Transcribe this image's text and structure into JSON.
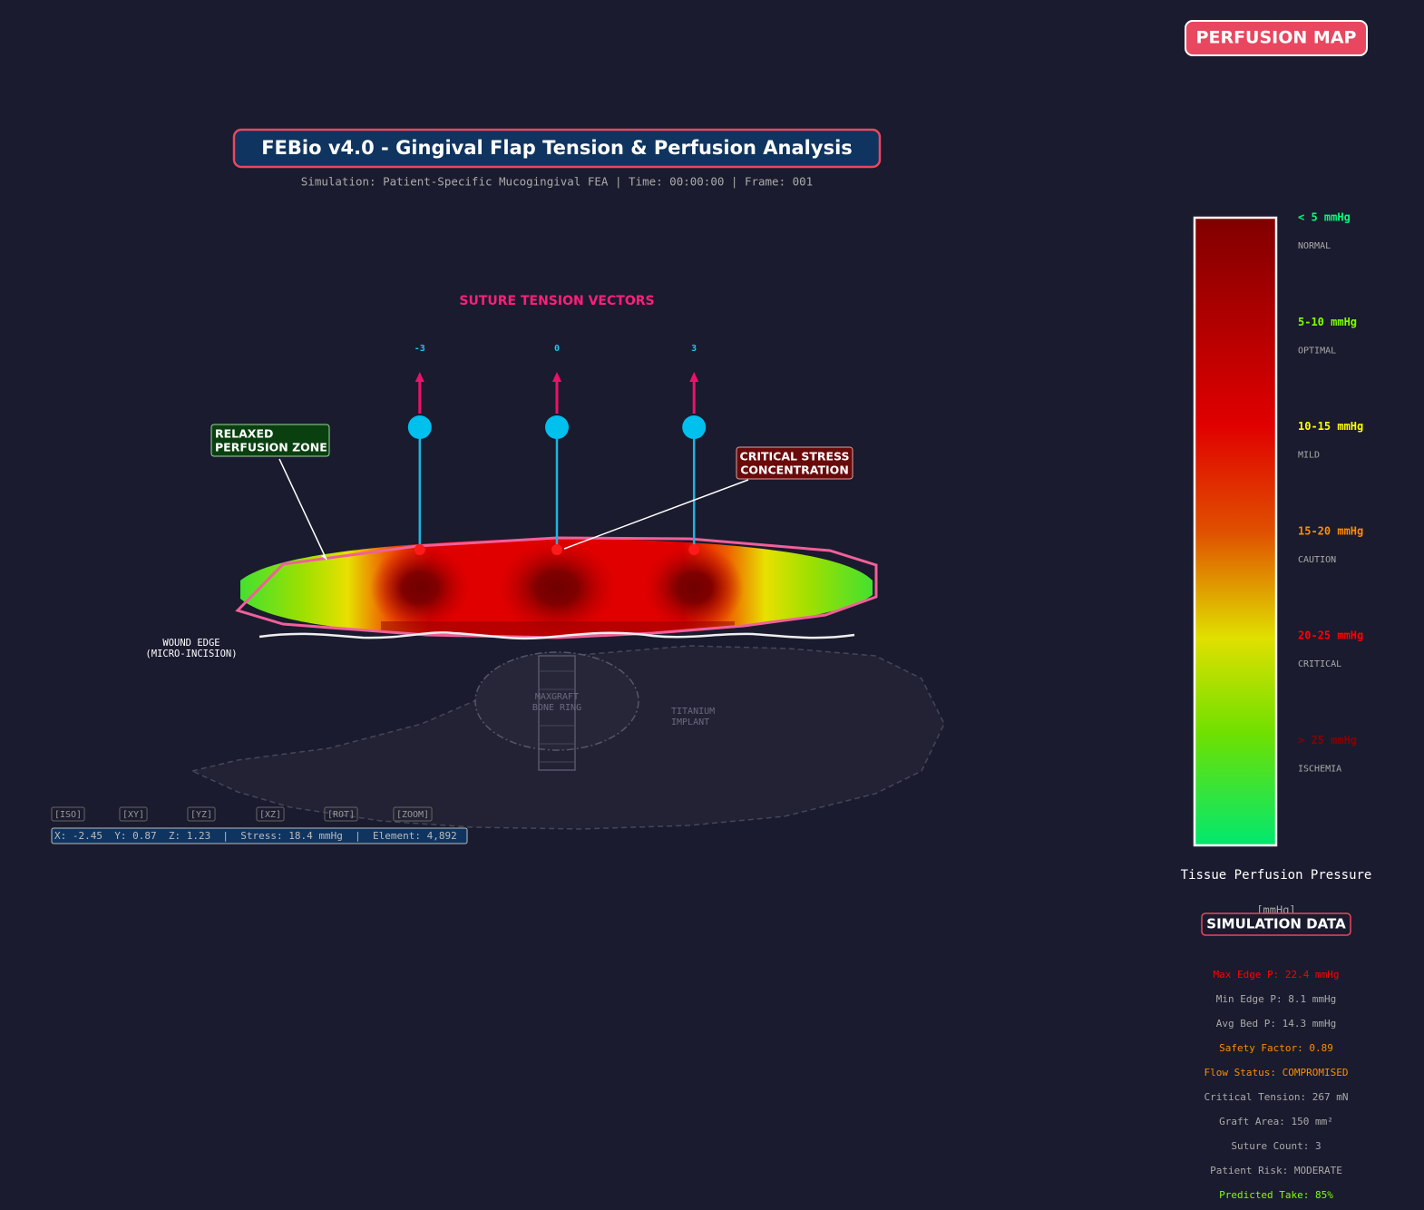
{
  "badge": "PERFUSION MAP",
  "header": {
    "title": "FEBio v4.0 - Gingival Flap Tension & Perfusion Analysis",
    "subtitle": "Simulation: Patient-Specific Mucogingival FEA | Time: 00:00:00 | Frame: 001"
  },
  "suture": {
    "title": "SUTURE TENSION VECTORS",
    "labels": [
      -3,
      0,
      3
    ]
  },
  "annotations": {
    "relaxed": [
      "RELAXED",
      "PERFUSION ZONE"
    ],
    "critical": [
      "CRITICAL STRESS",
      "CONCENTRATION"
    ],
    "wound": [
      "WOUND EDGE",
      "(MICRO-INCISION)"
    ],
    "bone": [
      "MAXGRAFT",
      "BONE RING"
    ],
    "implant": [
      "TITANIUM",
      "IMPLANT"
    ]
  },
  "toolbar": [
    "[ISO]",
    "[XY]",
    "[YZ]",
    "[XZ]",
    "[ROT]",
    "[ZOOM]"
  ],
  "status": "X: -2.45  Y: 0.87  Z: 1.23  |  Stress: 18.4 mmHg  |  Element: 4,892",
  "legend": {
    "items": [
      {
        "range": "< 5 mmHg",
        "label": "NORMAL",
        "color": "#00ff7f"
      },
      {
        "range": "5-10 mmHg",
        "label": "OPTIMAL",
        "color": "#7fff00"
      },
      {
        "range": "10-15 mmHg",
        "label": "MILD",
        "color": "#ffff00"
      },
      {
        "range": "15-20 mmHg",
        "label": "CAUTION",
        "color": "#ff8c00"
      },
      {
        "range": "20-25 mmHg",
        "label": "CRITICAL",
        "color": "#ff0000"
      },
      {
        "range": "> 25 mmHg",
        "label": "ISCHEMIA",
        "color": "#8b0000"
      }
    ],
    "title": "Tissue Perfusion Pressure",
    "unit": "[mmHg]"
  },
  "simulation": {
    "title": "SIMULATION DATA",
    "lines": [
      {
        "text": "Max Edge P: 22.4 mmHg",
        "color": "#ff0000"
      },
      {
        "text": "Min Edge P: 8.1 mmHg",
        "color": "#aaaaaa"
      },
      {
        "text": "Avg Bed P: 14.3 mmHg",
        "color": "#aaaaaa"
      },
      {
        "text": "Safety Factor: 0.89",
        "color": "#ff8c00"
      },
      {
        "text": "Flow Status: COMPROMISED",
        "color": "#ff8c00"
      },
      {
        "text": "Critical Tension: 267 mN",
        "color": "#aaaaaa"
      },
      {
        "text": "Graft Area: 150 mm²",
        "color": "#aaaaaa"
      },
      {
        "text": "Suture Count: 3",
        "color": "#aaaaaa"
      },
      {
        "text": "Patient Risk: MODERATE",
        "color": "#aaaaaa"
      },
      {
        "text": "Predicted Take: 85%",
        "color": "#7fff00"
      }
    ]
  }
}
